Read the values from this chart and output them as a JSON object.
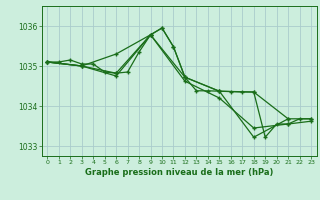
{
  "title": "Graphe pression niveau de la mer (hPa)",
  "background_color": "#cceedd",
  "plot_bg_color": "#cceedd",
  "line_color": "#1a6e1a",
  "grid_color": "#aacccc",
  "xlim": [
    -0.5,
    23.5
  ],
  "ylim": [
    1032.75,
    1036.5
  ],
  "yticks": [
    1033,
    1034,
    1035,
    1036
  ],
  "xticks": [
    0,
    1,
    2,
    3,
    4,
    5,
    6,
    7,
    8,
    9,
    10,
    11,
    12,
    13,
    14,
    15,
    16,
    17,
    18,
    19,
    20,
    21,
    22,
    23
  ],
  "series": [
    {
      "x": [
        0,
        1,
        2,
        3,
        4,
        5,
        6,
        7,
        8,
        9,
        10,
        11,
        12,
        13,
        14,
        15,
        16,
        17,
        18,
        19,
        20,
        21,
        22,
        23
      ],
      "y": [
        1035.1,
        1035.1,
        1035.15,
        1035.05,
        1035.05,
        1034.85,
        1034.82,
        1034.85,
        1035.35,
        1035.78,
        1035.95,
        1035.48,
        1034.72,
        1034.38,
        1034.38,
        1034.37,
        1034.36,
        1034.35,
        1034.35,
        1033.22,
        1033.55,
        1033.55,
        1033.68,
        1033.68
      ]
    },
    {
      "x": [
        0,
        3,
        6,
        9,
        10,
        11,
        12,
        15,
        18,
        21
      ],
      "y": [
        1035.1,
        1035.0,
        1035.3,
        1035.78,
        1035.95,
        1035.48,
        1034.72,
        1034.37,
        1033.22,
        1033.68
      ]
    },
    {
      "x": [
        0,
        3,
        6,
        9,
        12,
        15,
        18,
        21,
        23
      ],
      "y": [
        1035.1,
        1035.0,
        1034.82,
        1035.78,
        1034.72,
        1034.37,
        1034.35,
        1033.68,
        1033.68
      ]
    },
    {
      "x": [
        0,
        3,
        6,
        9,
        12,
        15,
        18,
        21,
        23
      ],
      "y": [
        1035.1,
        1035.0,
        1034.75,
        1035.78,
        1034.62,
        1034.2,
        1033.45,
        1033.55,
        1033.62
      ]
    }
  ]
}
